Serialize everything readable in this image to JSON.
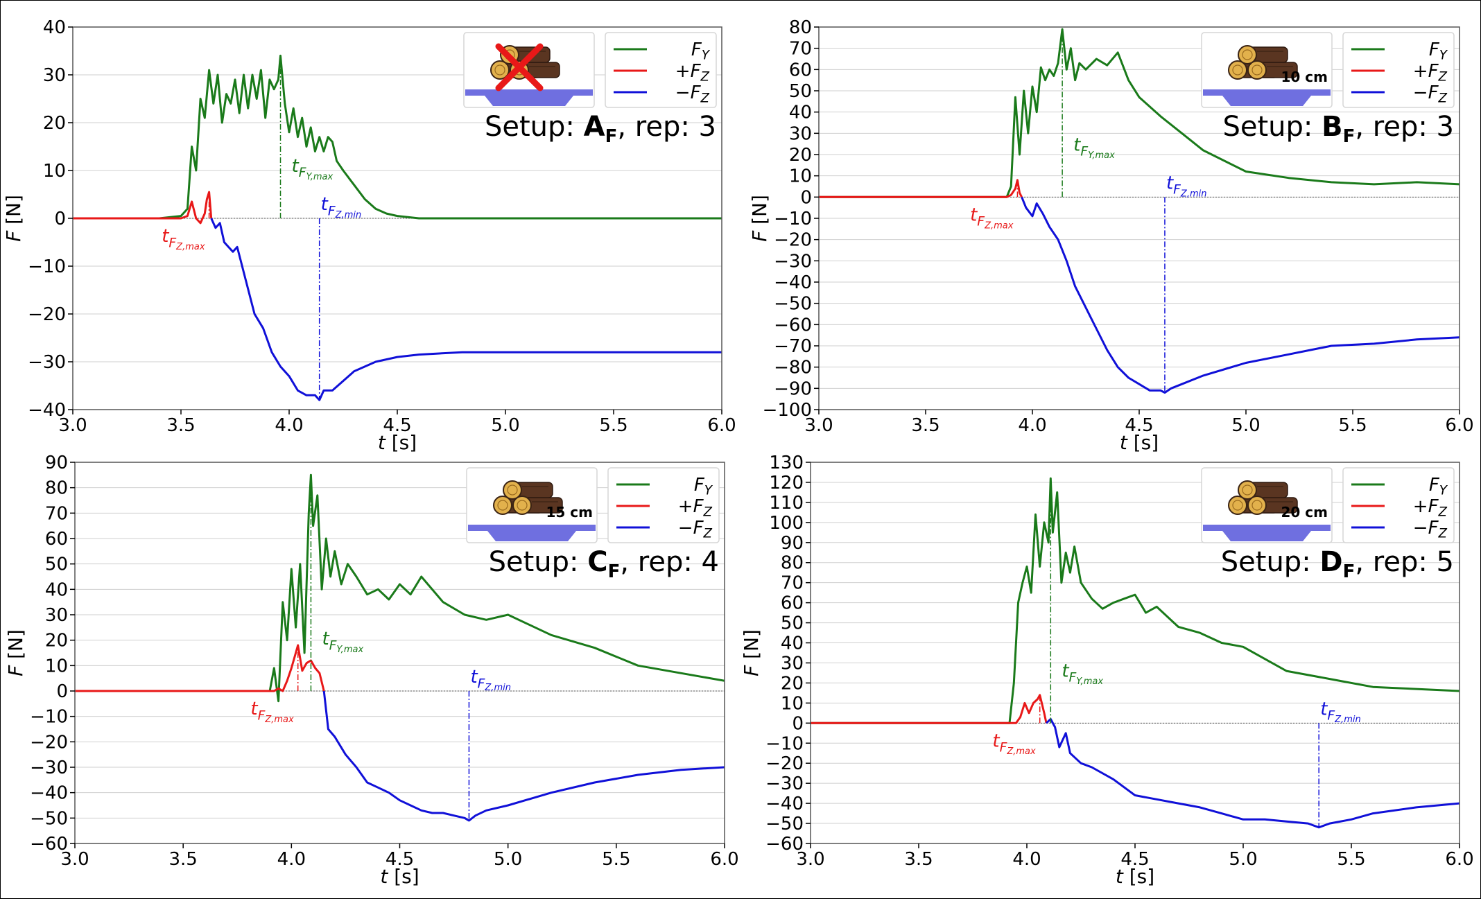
{
  "colors": {
    "fy": "#1a7a1a",
    "fz_pos": "#e81818",
    "fz_neg": "#1010d8",
    "stand": "#6f6fe0",
    "axis": "#000000",
    "grid": "#cfcfcf"
  },
  "legend_labels": {
    "fy": "F_Y",
    "fz_pos": "+F_Z",
    "fz_neg": "−F_Z"
  },
  "icon_names": {
    "wood_pile": "log-pile-icon",
    "no_wood": "red-cross-icon",
    "stand": "force-plate-icon"
  },
  "chart_data": [
    {
      "id": "A",
      "type": "line",
      "setup_letter": "A",
      "setup_subscript": "F",
      "rep": "3",
      "title_prefix": "Setup: ",
      "title_rep_prefix": ", rep: ",
      "gap_label": "",
      "xlabel": "t [s]",
      "ylabel": "F [N]",
      "xlim": [
        3.0,
        6.0
      ],
      "ylim": [
        -40,
        40
      ],
      "xticks": [
        3.0,
        3.5,
        4.0,
        4.5,
        5.0,
        5.5,
        6.0
      ],
      "yticks": [
        -40,
        -30,
        -20,
        -10,
        0,
        10,
        20,
        30,
        40
      ],
      "grid": true,
      "legend_position": "top-right",
      "fy_peak_time": 3.96,
      "fy_peak_value": 34,
      "fz_max_time": 3.63,
      "fz_max_value": 5.5,
      "fz_min_time": 4.14,
      "fz_min_value": -38,
      "annotations": {
        "t_fy_max": "t_{F_Y,max}",
        "t_fz_max": "t_{F_Z,max}",
        "t_fz_min": "t_{F_Z,min}"
      },
      "series": [
        {
          "name": "F_Y",
          "x": [
            3.0,
            3.4,
            3.5,
            3.53,
            3.55,
            3.57,
            3.59,
            3.61,
            3.63,
            3.65,
            3.67,
            3.69,
            3.71,
            3.73,
            3.75,
            3.77,
            3.79,
            3.81,
            3.83,
            3.85,
            3.87,
            3.89,
            3.91,
            3.93,
            3.95,
            3.96,
            3.98,
            4.0,
            4.02,
            4.04,
            4.06,
            4.08,
            4.1,
            4.12,
            4.14,
            4.16,
            4.18,
            4.2,
            4.22,
            4.25,
            4.3,
            4.35,
            4.4,
            4.45,
            4.5,
            4.6,
            4.8,
            5.0,
            5.5,
            6.0
          ],
          "y": [
            0,
            0,
            0.5,
            2,
            15,
            10,
            25,
            21,
            31,
            24,
            30,
            20,
            26,
            24,
            29,
            22,
            30,
            23,
            30,
            25,
            31,
            21,
            29,
            27,
            29,
            34,
            24,
            18,
            23,
            17,
            21,
            15,
            19,
            14,
            17,
            14,
            17,
            16,
            12,
            10,
            7,
            4,
            2,
            1,
            0.5,
            0,
            0,
            0,
            0,
            0
          ]
        },
        {
          "name": "+F_Z",
          "x": [
            3.0,
            3.5,
            3.53,
            3.55,
            3.57,
            3.59,
            3.61,
            3.62,
            3.63,
            3.64
          ],
          "y": [
            0,
            0,
            0.5,
            3.5,
            0,
            -1,
            1,
            4,
            5.5,
            0
          ]
        },
        {
          "name": "−F_Z",
          "x": [
            3.64,
            3.66,
            3.68,
            3.7,
            3.72,
            3.74,
            3.76,
            3.8,
            3.84,
            3.88,
            3.92,
            3.96,
            4.0,
            4.04,
            4.08,
            4.12,
            4.14,
            4.16,
            4.2,
            4.25,
            4.3,
            4.4,
            4.5,
            4.6,
            4.8,
            5.0,
            5.5,
            6.0
          ],
          "y": [
            0,
            -2,
            -1,
            -5,
            -6,
            -7,
            -6,
            -13,
            -20,
            -23,
            -28,
            -31,
            -33,
            -36,
            -37,
            -37,
            -38,
            -36,
            -36,
            -34,
            -32,
            -30,
            -29,
            -28.5,
            -28,
            -28,
            -28,
            -28
          ]
        }
      ]
    },
    {
      "id": "B",
      "type": "line",
      "setup_letter": "B",
      "setup_subscript": "F",
      "rep": "3",
      "title_prefix": "Setup: ",
      "title_rep_prefix": ", rep: ",
      "gap_label": "10 cm",
      "xlabel": "t [s]",
      "ylabel": "F [N]",
      "xlim": [
        3.0,
        6.0
      ],
      "ylim": [
        -100,
        80
      ],
      "xticks": [
        3.0,
        3.5,
        4.0,
        4.5,
        5.0,
        5.5,
        6.0
      ],
      "yticks": [
        -100,
        -90,
        -80,
        -70,
        -60,
        -50,
        -40,
        -30,
        -20,
        -10,
        0,
        10,
        20,
        30,
        40,
        50,
        60,
        70,
        80
      ],
      "grid": true,
      "legend_position": "top-right",
      "fy_peak_time": 4.14,
      "fy_peak_value": 79,
      "fz_max_time": 3.93,
      "fz_max_value": 8,
      "fz_min_time": 4.62,
      "fz_min_value": -92,
      "annotations": {
        "t_fy_max": "t_{F_Y,max}",
        "t_fz_max": "t_{F_Z,max}",
        "t_fz_min": "t_{F_Z,min}"
      },
      "series": [
        {
          "name": "F_Y",
          "x": [
            3.0,
            3.88,
            3.9,
            3.92,
            3.94,
            3.96,
            3.98,
            4.0,
            4.02,
            4.04,
            4.06,
            4.08,
            4.1,
            4.12,
            4.14,
            4.16,
            4.18,
            4.2,
            4.22,
            4.25,
            4.3,
            4.35,
            4.4,
            4.45,
            4.5,
            4.6,
            4.7,
            4.8,
            5.0,
            5.2,
            5.4,
            5.6,
            5.8,
            6.0
          ],
          "y": [
            0,
            0,
            5,
            47,
            20,
            50,
            30,
            52,
            40,
            61,
            55,
            60,
            57,
            63,
            79,
            60,
            70,
            55,
            63,
            60,
            65,
            62,
            68,
            55,
            47,
            38,
            30,
            22,
            12,
            9,
            7,
            6,
            7,
            6
          ]
        },
        {
          "name": "+F_Z",
          "x": [
            3.0,
            3.88,
            3.9,
            3.92,
            3.93,
            3.94,
            3.95
          ],
          "y": [
            0,
            0,
            1,
            4,
            8,
            2,
            0
          ]
        },
        {
          "name": "−F_Z",
          "x": [
            3.95,
            3.97,
            4.0,
            4.02,
            4.05,
            4.08,
            4.12,
            4.16,
            4.2,
            4.25,
            4.3,
            4.35,
            4.4,
            4.45,
            4.5,
            4.55,
            4.6,
            4.62,
            4.65,
            4.7,
            4.8,
            5.0,
            5.2,
            5.4,
            5.6,
            5.8,
            6.0
          ],
          "y": [
            0,
            -5,
            -9,
            -3,
            -8,
            -14,
            -20,
            -30,
            -42,
            -52,
            -62,
            -72,
            -80,
            -85,
            -88,
            -91,
            -91,
            -92,
            -90,
            -88,
            -84,
            -78,
            -74,
            -70,
            -69,
            -67,
            -66
          ]
        }
      ]
    },
    {
      "id": "C",
      "type": "line",
      "setup_letter": "C",
      "setup_subscript": "F",
      "rep": "4",
      "title_prefix": "Setup: ",
      "title_rep_prefix": ", rep: ",
      "gap_label": "15 cm",
      "xlabel": "t [s]",
      "ylabel": "F [N]",
      "xlim": [
        3.0,
        6.0
      ],
      "ylim": [
        -60,
        90
      ],
      "xticks": [
        3.0,
        3.5,
        4.0,
        4.5,
        5.0,
        5.5,
        6.0
      ],
      "yticks": [
        -60,
        -50,
        -40,
        -30,
        -20,
        -10,
        0,
        10,
        20,
        30,
        40,
        50,
        60,
        70,
        80,
        90
      ],
      "grid": true,
      "legend_position": "top-right",
      "fy_peak_time": 4.09,
      "fy_peak_value": 85,
      "fz_max_time": 4.03,
      "fz_max_value": 18,
      "fz_min_time": 4.82,
      "fz_min_value": -51,
      "annotations": {
        "t_fy_max": "t_{F_Y,max}",
        "t_fz_max": "t_{F_Z,max}",
        "t_fz_min": "t_{F_Z,min}"
      },
      "series": [
        {
          "name": "F_Y",
          "x": [
            3.0,
            3.9,
            3.92,
            3.94,
            3.96,
            3.98,
            4.0,
            4.02,
            4.04,
            4.06,
            4.08,
            4.09,
            4.1,
            4.12,
            4.14,
            4.16,
            4.18,
            4.2,
            4.23,
            4.26,
            4.3,
            4.35,
            4.4,
            4.45,
            4.5,
            4.55,
            4.6,
            4.7,
            4.8,
            4.9,
            5.0,
            5.2,
            5.4,
            5.6,
            5.8,
            6.0
          ],
          "y": [
            0,
            0,
            9,
            -4,
            35,
            20,
            48,
            25,
            50,
            15,
            70,
            85,
            65,
            77,
            40,
            60,
            45,
            55,
            42,
            50,
            45,
            38,
            40,
            36,
            42,
            38,
            45,
            35,
            30,
            28,
            30,
            22,
            17,
            10,
            7,
            4
          ]
        },
        {
          "name": "+F_Z",
          "x": [
            3.0,
            3.92,
            3.94,
            3.96,
            3.98,
            4.0,
            4.02,
            4.03,
            4.05,
            4.07,
            4.09,
            4.11,
            4.13,
            4.15
          ],
          "y": [
            0,
            0,
            1,
            0,
            4,
            9,
            15,
            18,
            8,
            11,
            12,
            9,
            7,
            0
          ]
        },
        {
          "name": "−F_Z",
          "x": [
            4.15,
            4.17,
            4.2,
            4.25,
            4.3,
            4.35,
            4.4,
            4.45,
            4.5,
            4.55,
            4.6,
            4.65,
            4.7,
            4.75,
            4.8,
            4.82,
            4.85,
            4.9,
            5.0,
            5.2,
            5.4,
            5.6,
            5.8,
            6.0
          ],
          "y": [
            0,
            -15,
            -18,
            -25,
            -30,
            -36,
            -38,
            -40,
            -43,
            -45,
            -47,
            -48,
            -48,
            -49,
            -50,
            -51,
            -49,
            -47,
            -45,
            -40,
            -36,
            -33,
            -31,
            -30
          ]
        }
      ]
    },
    {
      "id": "D",
      "type": "line",
      "setup_letter": "D",
      "setup_subscript": "F",
      "rep": "5",
      "title_prefix": "Setup: ",
      "title_rep_prefix": ", rep: ",
      "gap_label": "20 cm",
      "xlabel": "t [s]",
      "ylabel": "F [N]",
      "xlim": [
        3.0,
        6.0
      ],
      "ylim": [
        -60,
        130
      ],
      "xticks": [
        3.0,
        3.5,
        4.0,
        4.5,
        5.0,
        5.5,
        6.0
      ],
      "yticks": [
        -60,
        -50,
        -40,
        -30,
        -20,
        -10,
        0,
        10,
        20,
        30,
        40,
        50,
        60,
        70,
        80,
        90,
        100,
        110,
        120,
        130
      ],
      "grid": true,
      "legend_position": "top-right",
      "fy_peak_time": 4.11,
      "fy_peak_value": 122,
      "fz_max_time": 4.06,
      "fz_max_value": 14,
      "fz_min_time": 5.35,
      "fz_min_value": -52,
      "annotations": {
        "t_fy_max": "t_{F_Y,max}",
        "t_fz_max": "t_{F_Z,max}",
        "t_fz_min": "t_{F_Z,min}"
      },
      "series": [
        {
          "name": "F_Y",
          "x": [
            3.0,
            3.92,
            3.94,
            3.96,
            3.98,
            4.0,
            4.02,
            4.04,
            4.06,
            4.08,
            4.1,
            4.11,
            4.12,
            4.14,
            4.16,
            4.18,
            4.2,
            4.22,
            4.25,
            4.3,
            4.35,
            4.4,
            4.45,
            4.5,
            4.55,
            4.6,
            4.7,
            4.8,
            4.9,
            5.0,
            5.1,
            5.2,
            5.4,
            5.6,
            5.8,
            6.0
          ],
          "y": [
            0,
            0,
            20,
            60,
            70,
            78,
            65,
            104,
            78,
            100,
            90,
            122,
            95,
            115,
            70,
            85,
            75,
            88,
            70,
            62,
            57,
            60,
            62,
            64,
            55,
            58,
            48,
            45,
            40,
            38,
            32,
            26,
            22,
            18,
            17,
            16
          ]
        },
        {
          "name": "+F_Z",
          "x": [
            3.0,
            3.95,
            3.97,
            3.99,
            4.01,
            4.03,
            4.05,
            4.06,
            4.08,
            4.09
          ],
          "y": [
            0,
            0,
            3,
            10,
            5,
            10,
            12,
            14,
            5,
            0
          ]
        },
        {
          "name": "−F_Z",
          "x": [
            4.09,
            4.11,
            4.13,
            4.15,
            4.18,
            4.2,
            4.25,
            4.3,
            4.4,
            4.5,
            4.6,
            4.7,
            4.8,
            4.9,
            5.0,
            5.1,
            5.2,
            5.3,
            5.35,
            5.4,
            5.5,
            5.6,
            5.8,
            6.0
          ],
          "y": [
            0,
            2,
            -2,
            -12,
            -5,
            -15,
            -20,
            -22,
            -28,
            -36,
            -38,
            -40,
            -42,
            -45,
            -48,
            -48,
            -49,
            -50,
            -52,
            -50,
            -48,
            -45,
            -42,
            -40
          ]
        }
      ]
    }
  ]
}
